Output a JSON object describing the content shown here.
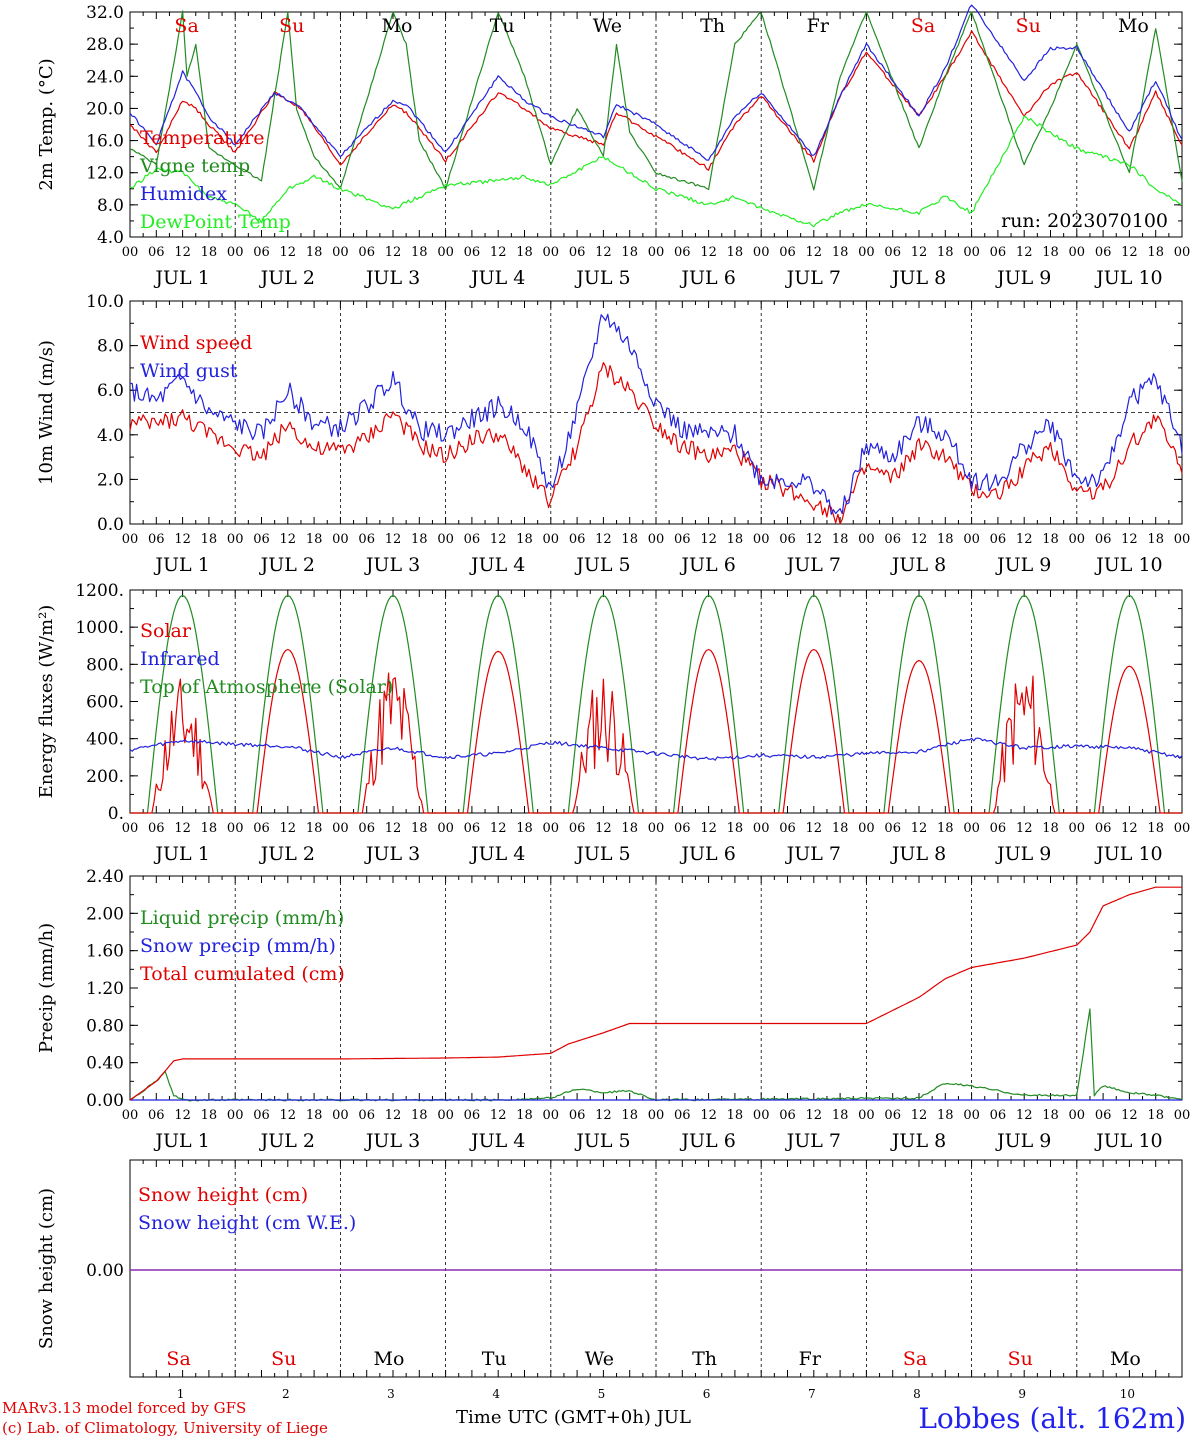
{
  "days": [
    {
      "abbr": "Sa",
      "color": "#e00000",
      "date": "JUL  1",
      "num": "1"
    },
    {
      "abbr": "Su",
      "color": "#e00000",
      "date": "JUL  2",
      "num": "2"
    },
    {
      "abbr": "Mo",
      "color": "#000000",
      "date": "JUL  3",
      "num": "3"
    },
    {
      "abbr": "Tu",
      "color": "#000000",
      "date": "JUL  4",
      "num": "4"
    },
    {
      "abbr": "We",
      "color": "#000000",
      "date": "JUL  5",
      "num": "5"
    },
    {
      "abbr": "Th",
      "color": "#000000",
      "date": "JUL  6",
      "num": "6"
    },
    {
      "abbr": "Fr",
      "color": "#000000",
      "date": "JUL  7",
      "num": "7"
    },
    {
      "abbr": "Sa",
      "color": "#e00000",
      "date": "JUL  8",
      "num": "8"
    },
    {
      "abbr": "Su",
      "color": "#e00000",
      "date": "JUL  9",
      "num": "9"
    },
    {
      "abbr": "Mo",
      "color": "#000000",
      "date": "JUL 10",
      "num": "10"
    }
  ],
  "hour_ticks": [
    "00",
    "06",
    "12",
    "18"
  ],
  "footer": {
    "model": "MARv3.13 model forced by GFS",
    "lab": "(c) Lab. of Climatology, University of Liege",
    "x_title": "Time UTC (GMT+0h) JUL",
    "station": "Lobbes (alt. 162m)"
  },
  "chart_data": [
    {
      "type": "line",
      "ylabel": "2m Temp. (°C)",
      "ylim": [
        4,
        32
      ],
      "yticks": [
        "4.0",
        "8.0",
        "12.0",
        "16.0",
        "20.0",
        "24.0",
        "28.0",
        "32.0"
      ],
      "annotation": "run: 2023070100",
      "x_unit": "hours since JUL 1 00 UTC",
      "series": [
        {
          "name": "Temperature",
          "color": "#e00000",
          "x": [
            0,
            6,
            12,
            15,
            18,
            24,
            33,
            39,
            48,
            60,
            63,
            72,
            84,
            90,
            96,
            108,
            111,
            120,
            132,
            138,
            144,
            156,
            162,
            168,
            180,
            186,
            192,
            204,
            210,
            216,
            228,
            234,
            240
          ],
          "values": [
            18,
            14.5,
            21,
            20,
            18,
            14.5,
            22,
            20,
            13,
            20.5,
            19.5,
            13.5,
            22,
            20,
            17.5,
            15.5,
            19.5,
            16.5,
            12.5,
            18,
            21.5,
            13.5,
            21.5,
            27,
            19,
            24,
            29.5,
            19,
            23,
            24.5,
            15,
            22,
            15.5
          ]
        },
        {
          "name": "Vigne temp",
          "color": "#228b22",
          "x": [
            0,
            6,
            12,
            13,
            15,
            18,
            24,
            30,
            36,
            38,
            42,
            48,
            60,
            63,
            66,
            72,
            84,
            90,
            96,
            102,
            108,
            111,
            114,
            120,
            132,
            138,
            144,
            156,
            162,
            168,
            180,
            186,
            192,
            204,
            210,
            216,
            228,
            234,
            240
          ],
          "values": [
            15,
            13,
            32,
            24,
            28,
            15,
            13,
            11,
            32,
            20,
            14,
            10,
            32,
            28,
            16,
            10,
            32,
            24,
            13,
            20,
            14,
            28,
            17,
            12,
            10,
            28,
            32,
            10,
            24,
            32,
            15,
            24,
            32,
            13,
            20,
            28,
            12,
            30,
            11
          ]
        },
        {
          "name": "Humidex",
          "color": "#2222dd",
          "x": [
            0,
            6,
            12,
            15,
            18,
            24,
            33,
            39,
            48,
            60,
            63,
            72,
            84,
            90,
            96,
            108,
            111,
            120,
            132,
            138,
            144,
            156,
            162,
            168,
            180,
            186,
            192,
            204,
            210,
            216,
            228,
            234,
            240
          ],
          "values": [
            19.5,
            15.5,
            24.5,
            22,
            19,
            15.5,
            22,
            20,
            14,
            21,
            20.5,
            14.5,
            24,
            21,
            19,
            16.5,
            20.5,
            18,
            13.5,
            19,
            22,
            14,
            21.5,
            28,
            19,
            25,
            33,
            23.5,
            27.5,
            27.5,
            17,
            23.5,
            16
          ]
        },
        {
          "name": "DewPoint Temp",
          "color": "#22ee22",
          "x": [
            0,
            6,
            12,
            18,
            24,
            30,
            36,
            42,
            48,
            60,
            66,
            72,
            84,
            90,
            96,
            108,
            114,
            120,
            132,
            138,
            144,
            156,
            162,
            168,
            180,
            186,
            192,
            204,
            210,
            216,
            228,
            234,
            240
          ],
          "values": [
            10,
            12.5,
            12,
            9,
            8,
            6,
            10,
            11.5,
            10,
            7.5,
            9,
            10.5,
            11,
            11.5,
            10.5,
            14,
            12,
            10,
            8,
            9,
            7.5,
            5.5,
            7,
            8,
            7,
            9,
            7,
            19,
            17,
            15,
            13,
            10,
            8
          ]
        }
      ]
    },
    {
      "type": "line",
      "ylabel": "10m Wind (m/s)",
      "ylim": [
        0,
        10
      ],
      "yticks": [
        "0.0",
        "2.0",
        "4.0",
        "6.0",
        "8.0",
        "10.0"
      ],
      "reference_line": 5,
      "x_unit": "hours since JUL 1 00 UTC",
      "series": [
        {
          "name": "Wind speed",
          "color": "#e00000",
          "x": [
            0,
            6,
            12,
            18,
            24,
            30,
            36,
            42,
            48,
            54,
            60,
            66,
            72,
            78,
            84,
            90,
            96,
            102,
            108,
            114,
            120,
            126,
            132,
            138,
            144,
            150,
            156,
            162,
            168,
            174,
            180,
            186,
            192,
            198,
            204,
            210,
            216,
            222,
            228,
            234,
            240
          ],
          "values": [
            4.5,
            4.5,
            4.8,
            4,
            3.5,
            3,
            4.5,
            3.3,
            3.3,
            3.8,
            5,
            3.5,
            3,
            3.8,
            4,
            2.5,
            1,
            3.5,
            7,
            6,
            4.5,
            3.5,
            3,
            3.3,
            2,
            1.5,
            1,
            0.3,
            2.5,
            2,
            3.5,
            3,
            1.5,
            1.3,
            2.5,
            3.5,
            1.5,
            1.5,
            3.5,
            4.8,
            2.5
          ]
        },
        {
          "name": "Wind gust",
          "color": "#2222dd",
          "x": [
            0,
            6,
            12,
            18,
            24,
            30,
            36,
            42,
            48,
            54,
            60,
            66,
            72,
            78,
            84,
            90,
            96,
            102,
            108,
            114,
            120,
            126,
            132,
            138,
            144,
            150,
            156,
            162,
            168,
            174,
            180,
            186,
            192,
            198,
            204,
            210,
            216,
            222,
            228,
            234,
            240
          ],
          "values": [
            6,
            5.5,
            6.5,
            5,
            4.5,
            4,
            6,
            4.5,
            4.3,
            5.3,
            6.5,
            4.2,
            4,
            4.7,
            5.3,
            4.5,
            1.5,
            5,
            9.5,
            8,
            5.5,
            4.2,
            4,
            4,
            2,
            2,
            1.8,
            0.3,
            3.5,
            3,
            4.5,
            4,
            2,
            1.8,
            3.5,
            4.5,
            2,
            2,
            5.5,
            6.5,
            3.5
          ]
        }
      ]
    },
    {
      "type": "line",
      "ylabel": "Energy fluxes (W/m²)",
      "ylim": [
        0,
        1200
      ],
      "yticks": [
        "0.",
        "200.",
        "400.",
        "600.",
        "800.",
        "1000.",
        "1200."
      ],
      "x_unit": "hours since JUL 1 00 UTC",
      "series": [
        {
          "name": "Solar",
          "color": "#e00000",
          "peak_x": [
            12,
            36,
            60,
            84,
            108,
            132,
            156,
            180,
            204,
            228
          ],
          "peak_values": [
            750,
            880,
            860,
            870,
            820,
            880,
            880,
            820,
            860,
            790
          ]
        },
        {
          "name": "Infrared",
          "color": "#2222dd",
          "x": [
            0,
            12,
            24,
            36,
            48,
            60,
            72,
            84,
            96,
            108,
            120,
            132,
            144,
            156,
            168,
            180,
            192,
            204,
            216,
            228,
            240
          ],
          "values": [
            340,
            390,
            370,
            360,
            300,
            350,
            300,
            320,
            380,
            350,
            320,
            290,
            310,
            300,
            320,
            330,
            400,
            350,
            360,
            350,
            300
          ]
        },
        {
          "name": "Top of Atmosphere (Solar)",
          "color": "#228b22",
          "peak_value": 1170,
          "daylight_hours": [
            4,
            20
          ]
        }
      ]
    },
    {
      "type": "line",
      "ylabel": "Precip (mm/h)",
      "ylim": [
        0,
        2.4
      ],
      "yticks": [
        "0.00",
        "0.40",
        "0.80",
        "1.20",
        "1.60",
        "2.00",
        "2.40"
      ],
      "x_unit": "hours since JUL 1 00 UTC",
      "series": [
        {
          "name": "Liquid precip (mm/h)",
          "color": "#228b22",
          "x": [
            0,
            6,
            8,
            10,
            12,
            24,
            84,
            96,
            102,
            108,
            114,
            120,
            180,
            186,
            192,
            204,
            216,
            219,
            220,
            222,
            228,
            234,
            240
          ],
          "values": [
            0,
            0.2,
            0.3,
            0.05,
            0,
            0,
            0,
            0.02,
            0.12,
            0.08,
            0.1,
            0,
            0.02,
            0.18,
            0.15,
            0.05,
            0.05,
            0.98,
            0.05,
            0.15,
            0.08,
            0.05,
            0
          ]
        },
        {
          "name": "Snow precip (mm/h)",
          "color": "#2222dd",
          "x": [
            0,
            240
          ],
          "values": [
            0,
            0
          ]
        },
        {
          "name": "Total cumulated (cm)",
          "color": "#e00000",
          "x": [
            0,
            6,
            10,
            12,
            24,
            48,
            72,
            84,
            96,
            100,
            108,
            114,
            120,
            132,
            144,
            156,
            168,
            180,
            186,
            192,
            204,
            216,
            219,
            222,
            228,
            234,
            240
          ],
          "values": [
            0,
            0.2,
            0.42,
            0.44,
            0.44,
            0.44,
            0.45,
            0.46,
            0.5,
            0.6,
            0.72,
            0.82,
            0.82,
            0.82,
            0.82,
            0.82,
            0.82,
            1.1,
            1.3,
            1.42,
            1.52,
            1.66,
            1.8,
            2.08,
            2.2,
            2.28,
            2.28
          ]
        }
      ]
    },
    {
      "type": "line",
      "ylabel": "Snow height (cm)",
      "yticks": [
        "0.00"
      ],
      "x_unit": "hours since JUL 1 00 UTC",
      "series": [
        {
          "name": "Snow height (cm)",
          "color": "#e00000",
          "x": [
            0,
            240
          ],
          "values": [
            0,
            0
          ]
        },
        {
          "name": "Snow height (cm W.E.)",
          "color": "#2222dd",
          "x": [
            0,
            240
          ],
          "values": [
            0,
            0
          ]
        }
      ]
    }
  ]
}
